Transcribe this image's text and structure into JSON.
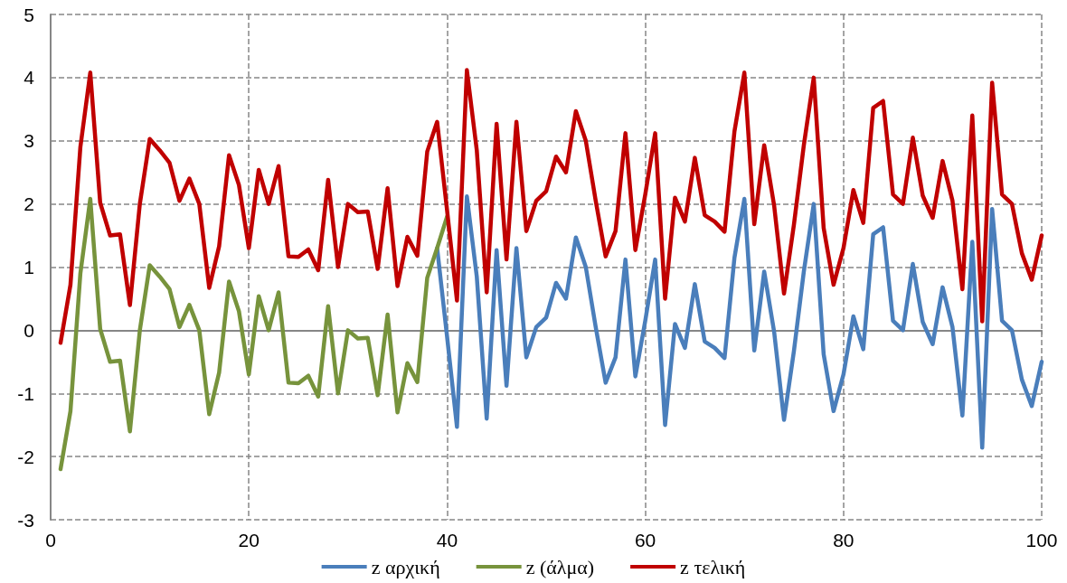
{
  "chart_data": {
    "type": "line",
    "xlim": [
      0,
      100
    ],
    "xticks": [
      0,
      20,
      40,
      60,
      80,
      100
    ],
    "ylim": [
      -3,
      5
    ],
    "yticks": [
      -3,
      -2,
      -1,
      0,
      1,
      2,
      3,
      4,
      5
    ],
    "grid": true,
    "legend": "bottom",
    "marker": "none",
    "line_style": "solid",
    "series": [
      {
        "name": "z αρχική",
        "color": "#4a7ebb",
        "x": [
          39,
          40,
          41,
          42,
          43,
          44,
          45,
          46,
          47,
          48,
          49,
          50,
          51,
          52,
          53,
          54,
          55,
          56,
          57,
          58,
          59,
          60,
          61,
          62,
          63,
          64,
          65,
          66,
          67,
          68,
          69,
          70,
          71,
          72,
          73,
          74,
          75,
          76,
          77,
          78,
          79,
          80,
          81,
          82,
          83,
          84,
          85,
          86,
          87,
          88,
          89,
          90,
          91,
          92,
          93,
          94,
          95,
          96,
          97,
          98,
          99,
          100
        ],
        "values": [
          1.3,
          -0.1,
          -1.53,
          2.12,
          0.85,
          -1.4,
          1.27,
          -0.88,
          1.3,
          -0.43,
          0.05,
          0.2,
          0.75,
          0.5,
          1.47,
          1.0,
          0.05,
          -0.83,
          -0.43,
          1.12,
          -0.73,
          0.15,
          1.12,
          -1.5,
          0.1,
          -0.28,
          0.73,
          -0.18,
          -0.28,
          -0.44,
          1.15,
          2.08,
          -0.32,
          0.93,
          -0.02,
          -1.42,
          -0.33,
          0.93,
          2.0,
          -0.38,
          -1.28,
          -0.7,
          0.22,
          -0.3,
          1.52,
          1.63,
          0.15,
          0.0,
          1.05,
          0.13,
          -0.22,
          0.68,
          0.05,
          -1.35,
          1.4,
          -1.86,
          1.92,
          0.15,
          0.0,
          -0.78,
          -1.2,
          -0.5
        ]
      },
      {
        "name": "z (άλμα)",
        "color": "#77933c",
        "x": [
          1,
          2,
          3,
          4,
          5,
          6,
          7,
          8,
          9,
          10,
          11,
          12,
          13,
          14,
          15,
          16,
          17,
          18,
          19,
          20,
          21,
          22,
          23,
          24,
          25,
          26,
          27,
          28,
          29,
          30,
          31,
          32,
          33,
          34,
          35,
          36,
          37,
          38,
          39,
          40
        ],
        "values": [
          -2.2,
          -1.28,
          0.9,
          2.08,
          0.02,
          -0.5,
          -0.48,
          -1.6,
          0.0,
          1.03,
          0.85,
          0.65,
          0.05,
          0.4,
          0.0,
          -1.33,
          -0.67,
          0.77,
          0.3,
          -0.7,
          0.54,
          0.0,
          0.6,
          -0.83,
          -0.84,
          -0.72,
          -1.05,
          0.38,
          -1.0,
          0.0,
          -0.13,
          -0.12,
          -1.03,
          0.25,
          -1.3,
          -0.52,
          -0.82,
          0.83,
          1.3,
          1.8
        ]
      },
      {
        "name": "z τελική",
        "color": "#c00000",
        "x": [
          1,
          2,
          3,
          4,
          5,
          6,
          7,
          8,
          9,
          10,
          11,
          12,
          13,
          14,
          15,
          16,
          17,
          18,
          19,
          20,
          21,
          22,
          23,
          24,
          25,
          26,
          27,
          28,
          29,
          30,
          31,
          32,
          33,
          34,
          35,
          36,
          37,
          38,
          39,
          40,
          41,
          42,
          43,
          44,
          45,
          46,
          47,
          48,
          49,
          50,
          51,
          52,
          53,
          54,
          55,
          56,
          57,
          58,
          59,
          60,
          61,
          62,
          63,
          64,
          65,
          66,
          67,
          68,
          69,
          70,
          71,
          72,
          73,
          74,
          75,
          76,
          77,
          78,
          79,
          80,
          81,
          82,
          83,
          84,
          85,
          86,
          87,
          88,
          89,
          90,
          91,
          92,
          93,
          94,
          95,
          96,
          97,
          98,
          99,
          100
        ],
        "values": [
          -0.2,
          0.72,
          2.9,
          4.08,
          2.02,
          1.5,
          1.52,
          0.4,
          2.0,
          3.03,
          2.85,
          2.65,
          2.05,
          2.4,
          2.0,
          0.67,
          1.33,
          2.77,
          2.3,
          1.3,
          2.54,
          2.0,
          2.6,
          1.17,
          1.16,
          1.28,
          0.95,
          2.38,
          1.0,
          2.0,
          1.87,
          1.88,
          0.97,
          2.25,
          0.7,
          1.48,
          1.18,
          2.83,
          3.3,
          1.9,
          0.47,
          4.12,
          2.85,
          0.6,
          3.27,
          1.12,
          3.3,
          1.57,
          2.05,
          2.2,
          2.75,
          2.5,
          3.47,
          3.0,
          2.05,
          1.17,
          1.57,
          3.12,
          1.27,
          2.15,
          3.12,
          0.5,
          2.1,
          1.72,
          2.73,
          1.82,
          1.72,
          1.56,
          3.15,
          4.08,
          1.68,
          2.93,
          1.98,
          0.58,
          1.67,
          2.93,
          4.0,
          1.62,
          0.72,
          1.3,
          2.22,
          1.7,
          3.52,
          3.63,
          2.15,
          2.0,
          3.05,
          2.13,
          1.78,
          2.68,
          2.05,
          0.65,
          3.4,
          0.14,
          3.92,
          2.15,
          2.0,
          1.22,
          0.8,
          1.5
        ]
      }
    ]
  }
}
